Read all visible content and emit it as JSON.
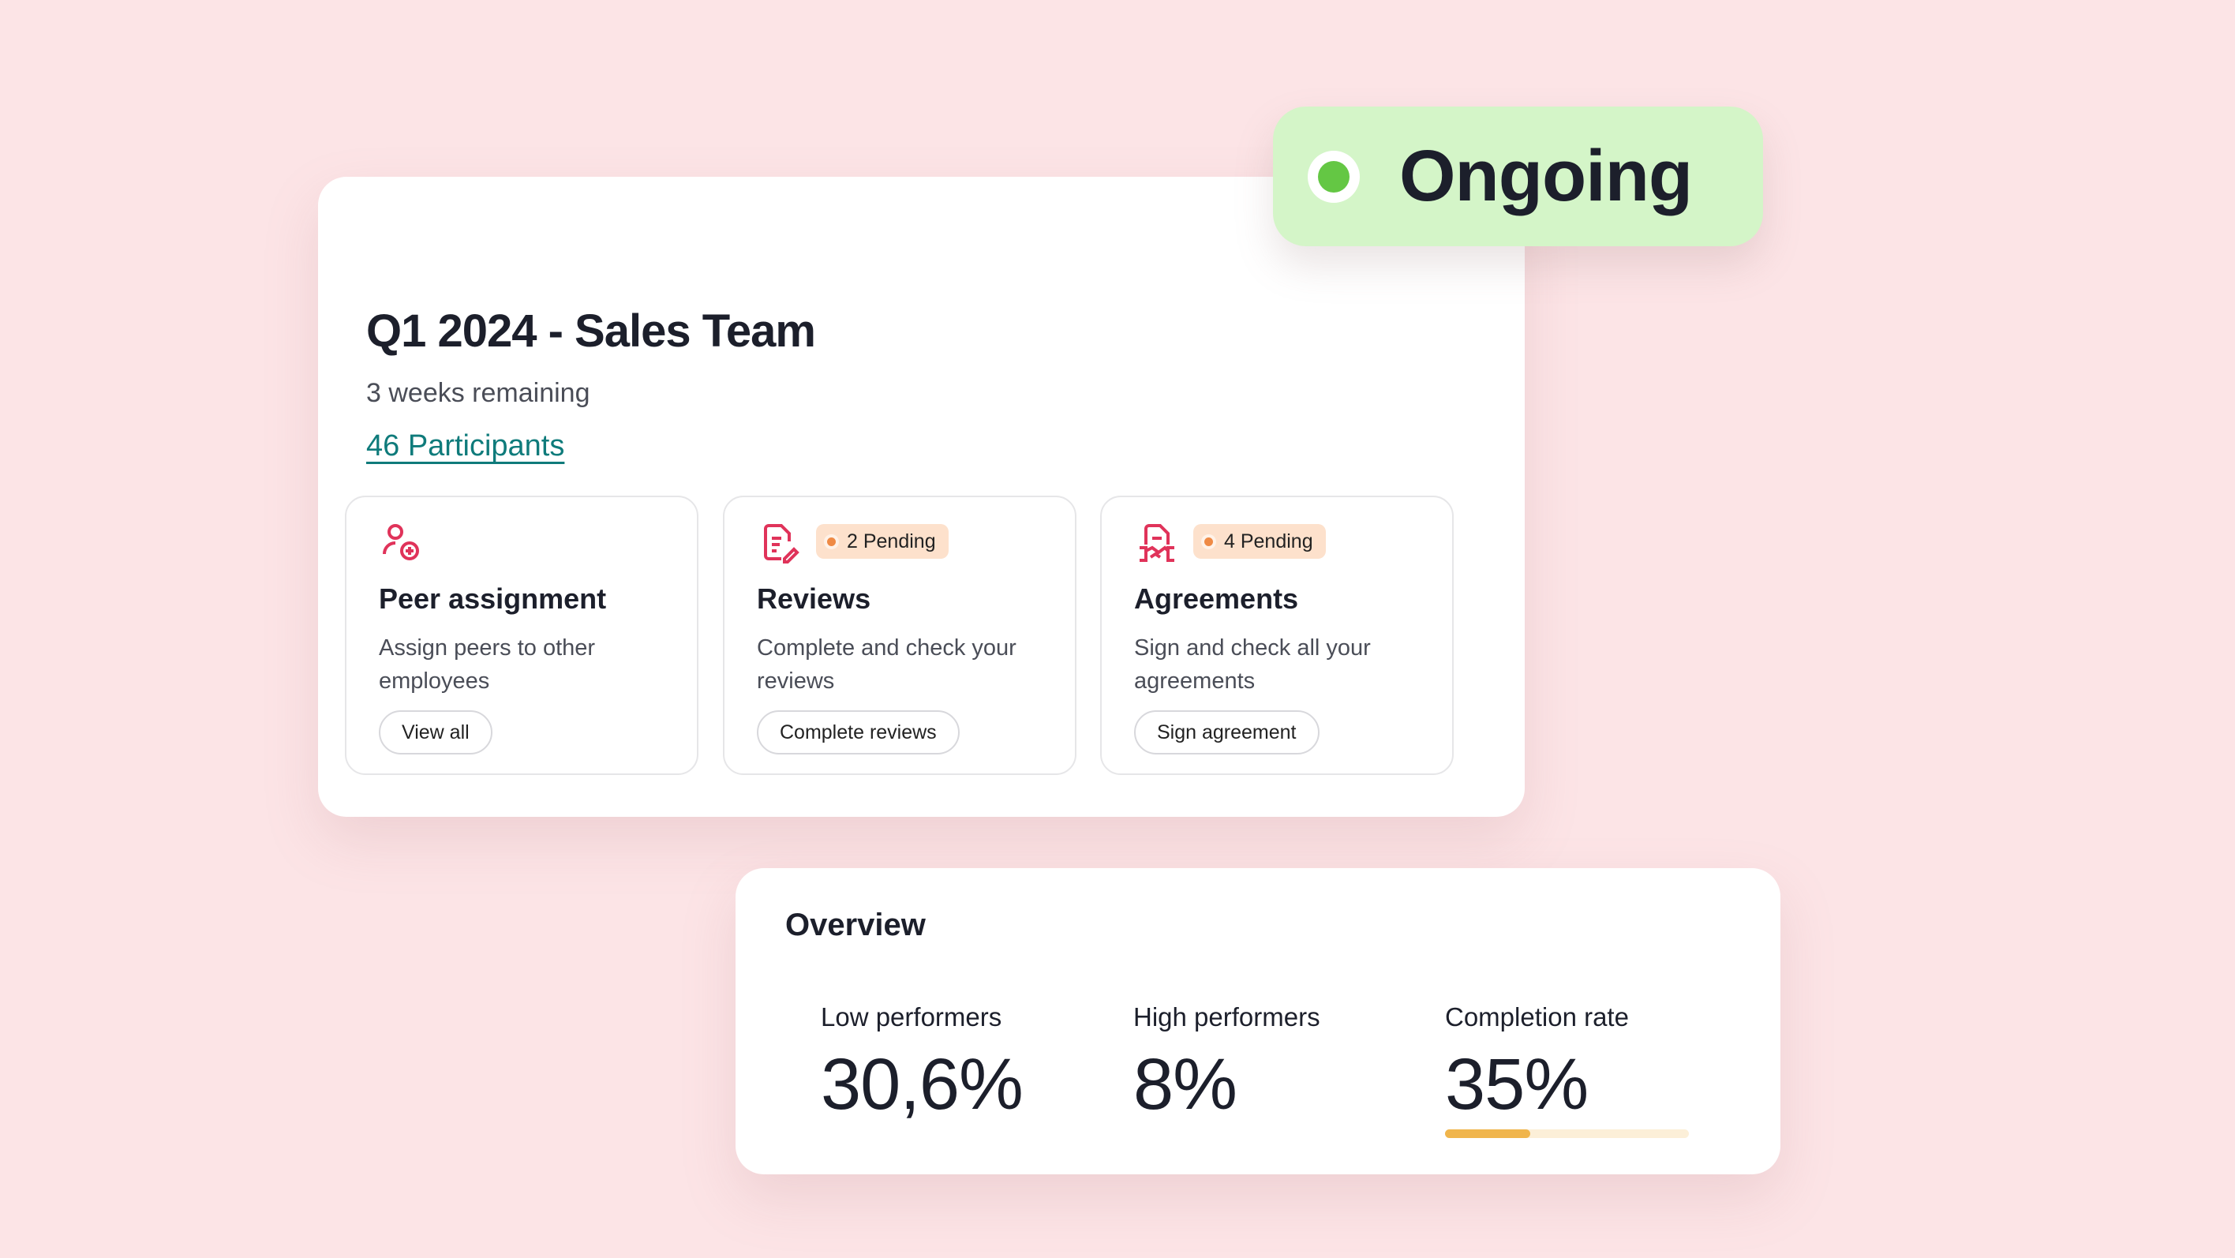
{
  "status": {
    "label": "Ongoing",
    "color": "#64c744"
  },
  "header": {
    "title": "Q1 2024 - Sales Team",
    "subtitle": "3 weeks remaining",
    "participants": "46 Participants"
  },
  "tasks": [
    {
      "icon": "user-plus-icon",
      "title": "Peer assignment",
      "description": "Assign peers to other employees",
      "button": "View all"
    },
    {
      "icon": "document-edit-icon",
      "badge": "2 Pending",
      "title": "Reviews",
      "description": "Complete and check your reviews",
      "button": "Complete reviews"
    },
    {
      "icon": "handshake-document-icon",
      "badge": "4 Pending",
      "title": "Agreements",
      "description": "Sign and check all your agreements",
      "button": "Sign agreement"
    }
  ],
  "overview": {
    "title": "Overview",
    "stats": [
      {
        "label": "Low performers",
        "value": "30,6%"
      },
      {
        "label": "High performers",
        "value": "8%"
      },
      {
        "label": "Completion rate",
        "value": "35%",
        "progress": 35
      }
    ]
  },
  "colors": {
    "accent": "#e0335a",
    "link": "#0f7b7b",
    "progress": "#f0b54c"
  }
}
